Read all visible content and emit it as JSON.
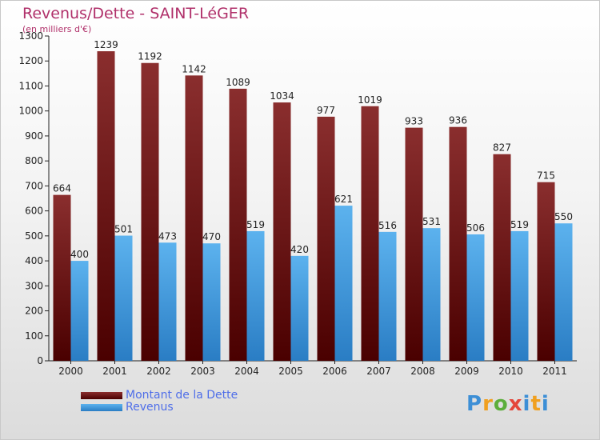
{
  "title": "Revenus/Dette - SAINT-LéGER",
  "unit": "(en milliers d'€)",
  "logo": "Proxiti",
  "colors": {
    "dette_top": "#8a2e2e",
    "dette_bottom": "#4a0000",
    "revenus_top": "#5cb2ee",
    "revenus_bottom": "#2a7dc4",
    "axis": "#222222",
    "grid": "#e8e8e8"
  },
  "chart_data": {
    "type": "bar",
    "categories": [
      "2000",
      "2001",
      "2002",
      "2003",
      "2004",
      "2005",
      "2006",
      "2007",
      "2008",
      "2009",
      "2010",
      "2011"
    ],
    "series": [
      {
        "name": "Montant de la Dette",
        "values": [
          664,
          1239,
          1192,
          1142,
          1089,
          1034,
          977,
          1019,
          933,
          936,
          827,
          715
        ]
      },
      {
        "name": "Revenus",
        "values": [
          400,
          501,
          473,
          470,
          519,
          420,
          621,
          516,
          531,
          506,
          519,
          550
        ]
      }
    ],
    "ylim": [
      0,
      1300
    ],
    "yticks": [
      0,
      100,
      200,
      300,
      400,
      500,
      600,
      700,
      800,
      900,
      1000,
      1100,
      1200,
      1300
    ],
    "legend_position": "bottom-left",
    "grid": false
  }
}
